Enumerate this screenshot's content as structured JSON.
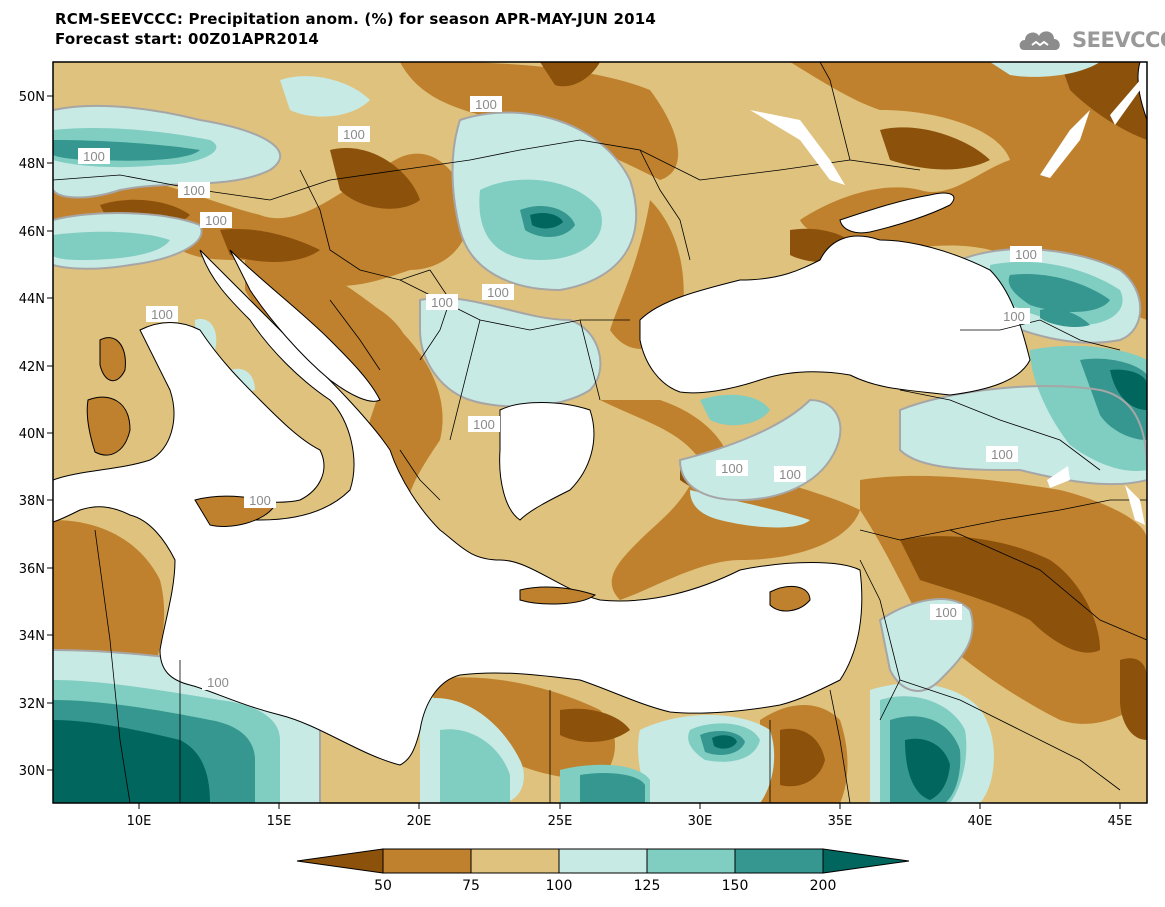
{
  "header": {
    "title_line1": "RCM-SEEVCCC: Precipitation anom. (%) for season APR-MAY-JUN 2014",
    "title_line2": "Forecast start: 00Z01APR2014",
    "logo_text": "SEEVCCC",
    "logo_icon": "cloud-icon"
  },
  "map": {
    "region": "Eastern Mediterranean / Black Sea",
    "lon_range": [
      7,
      46
    ],
    "lat_range": [
      29,
      51
    ],
    "lon_ticks": [
      "10E",
      "15E",
      "20E",
      "25E",
      "30E",
      "35E",
      "40E",
      "45E"
    ],
    "lat_ticks": [
      "50N",
      "48N",
      "46N",
      "44N",
      "42N",
      "40N",
      "38N",
      "36N",
      "34N",
      "32N",
      "30N"
    ],
    "contour_labels": [
      "100",
      "100",
      "100",
      "100",
      "100",
      "100",
      "100",
      "100",
      "100",
      "100",
      "100",
      "100",
      "100",
      "100",
      "100",
      "100",
      "100"
    ],
    "sea_color": "#ffffff",
    "border_color": "#000000",
    "contour_line_color": "#a6a6a6"
  },
  "colorbar": {
    "labels": [
      "50",
      "75",
      "100",
      "125",
      "150",
      "200"
    ],
    "colors": [
      "#8c510a",
      "#bf812d",
      "#dfc27d",
      "#c7eae5",
      "#80cdc1",
      "#35978f",
      "#01665e"
    ],
    "bin_edges": [
      50,
      75,
      100,
      125,
      150,
      200
    ]
  }
}
